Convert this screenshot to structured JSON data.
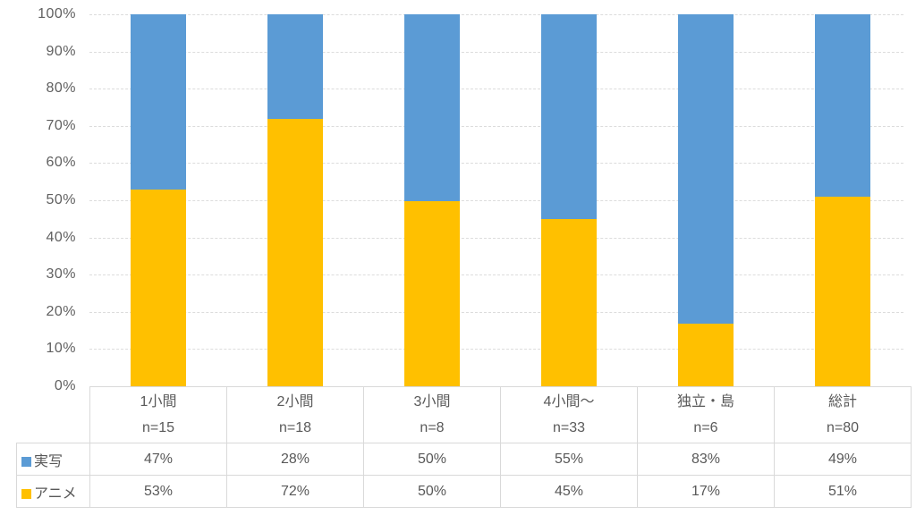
{
  "chart_data": {
    "type": "bar",
    "subtype": "100%-stacked-column",
    "title": "",
    "xlabel": "",
    "ylabel": "",
    "categories": [
      "1小間",
      "2小間",
      "3小間",
      "4小間〜",
      "独立・島",
      "総計"
    ],
    "sample_sizes": [
      "n=15",
      "n=18",
      "n=8",
      "n=33",
      "n=6",
      "n=80"
    ],
    "series": [
      {
        "name": "実写",
        "color": "#5B9BD5",
        "values": [
          47,
          28,
          50,
          55,
          83,
          49
        ]
      },
      {
        "name": "アニメ",
        "color": "#FFC000",
        "values": [
          53,
          72,
          50,
          45,
          17,
          51
        ]
      }
    ],
    "stack_order_top_to_bottom": [
      "実写",
      "アニメ"
    ],
    "value_suffix": "%",
    "y_axis": {
      "min": 0,
      "max": 100,
      "step": 10,
      "tick_labels": [
        "100%",
        "90%",
        "80%",
        "70%",
        "60%",
        "50%",
        "40%",
        "30%",
        "20%",
        "10%",
        "0%"
      ]
    },
    "grid": true,
    "gridline_color": "#DCDCDC",
    "legend_position": "table-left",
    "text_color": "#595959",
    "background_color": "#FFFFFF"
  }
}
